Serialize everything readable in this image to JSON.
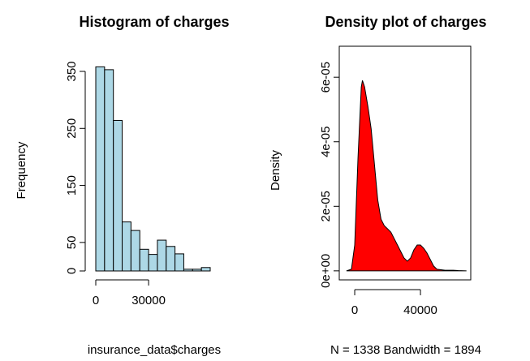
{
  "chart_data": [
    {
      "type": "histogram",
      "title": "Histogram of charges",
      "xlabel": "insurance_data$charges",
      "ylabel": "Frequency",
      "bins": [
        0,
        5000,
        10000,
        15000,
        20000,
        25000,
        30000,
        35000,
        40000,
        45000,
        50000,
        55000,
        60000,
        65000
      ],
      "values": [
        358,
        353,
        264,
        86,
        71,
        38,
        29,
        54,
        43,
        30,
        3,
        3,
        6
      ],
      "color": "#add8e6",
      "xlim": [
        0,
        65000
      ],
      "xticks": [
        0,
        30000
      ],
      "ylim": [
        0,
        350
      ],
      "yticks": [
        0,
        50,
        150,
        250,
        350
      ]
    },
    {
      "type": "area",
      "title": "Density plot of charges",
      "xlabel": "N = 1338   Bandwidth = 1894",
      "ylabel": "Density",
      "x": [
        -5000,
        -2000,
        0,
        2000,
        4000,
        4700,
        6000,
        8000,
        10000,
        12000,
        14000,
        16000,
        18000,
        20000,
        22000,
        24000,
        26000,
        28000,
        30000,
        32000,
        34000,
        36000,
        38000,
        40000,
        42000,
        44000,
        46000,
        48000,
        50000,
        55000,
        60000,
        63000,
        68000
      ],
      "values": [
        0,
        5e-07,
        8e-06,
        3.5e-05,
        5.7e-05,
        5.9e-05,
        5.7e-05,
        5.1e-05,
        4.4e-05,
        3.3e-05,
        2.2e-05,
        1.6e-05,
        1.4e-05,
        1.3e-05,
        1.2e-05,
        1e-05,
        8e-06,
        6e-06,
        4e-06,
        3e-06,
        4e-06,
        6.5e-06,
        8e-06,
        8e-06,
        7e-06,
        5.5e-06,
        3.5e-06,
        1.5e-06,
        5e-07,
        2e-07,
        2e-07,
        1e-07,
        0
      ],
      "color": "#ff0000",
      "xlim": [
        -9400,
        70600
      ],
      "xticks": [
        0,
        40000
      ],
      "ylim": [
        -2.8e-06,
        6.96e-05
      ],
      "yticks": [
        {
          "value": 0,
          "label": "0e+00"
        },
        {
          "value": 2e-05,
          "label": "2e-05"
        },
        {
          "value": 4e-05,
          "label": "4e-05"
        },
        {
          "value": 6e-05,
          "label": "6e-05"
        }
      ]
    }
  ]
}
